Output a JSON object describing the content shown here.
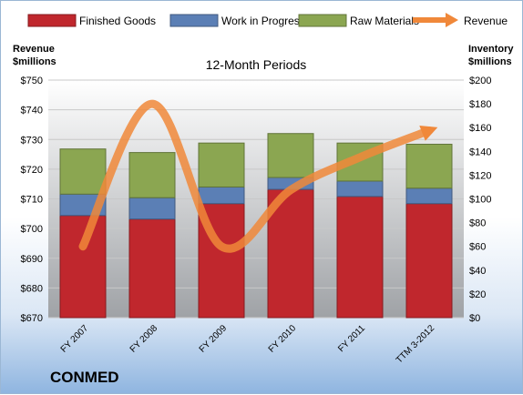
{
  "chart_data": {
    "type": "bar",
    "subtitle": "12-Month Periods",
    "company": "CONMED",
    "left_axis_title": [
      "Revenue",
      "$millions"
    ],
    "right_axis_title": [
      "Inventory",
      "$millions"
    ],
    "categories": [
      "FY 2007",
      "FY 2008",
      "FY 2009",
      "FY 2010",
      "FY 2011",
      "TTM 3-2012"
    ],
    "left_axis": {
      "min": 670,
      "max": 750,
      "step": 10,
      "prefix": "$",
      "series": "Revenue"
    },
    "right_axis": {
      "min": 0,
      "max": 200,
      "step": 20,
      "prefix": "$"
    },
    "stacked_series": [
      {
        "name": "Finished Goods",
        "axis": "right",
        "color": "#c0272d",
        "values": [
          86,
          83,
          96,
          108,
          102,
          96
        ]
      },
      {
        "name": "Work in Progress",
        "axis": "right",
        "color": "#5b7fb5",
        "values": [
          18,
          18,
          14,
          10,
          13,
          13
        ]
      },
      {
        "name": "Raw Materials",
        "axis": "right",
        "color": "#8ba651",
        "values": [
          38,
          38,
          37,
          37,
          32,
          37
        ]
      }
    ],
    "line_series": {
      "name": "Revenue",
      "axis": "left",
      "color": "#f0883a",
      "values": [
        694,
        742,
        694,
        713,
        724,
        733
      ]
    },
    "grid": true,
    "legend_position": "top"
  }
}
